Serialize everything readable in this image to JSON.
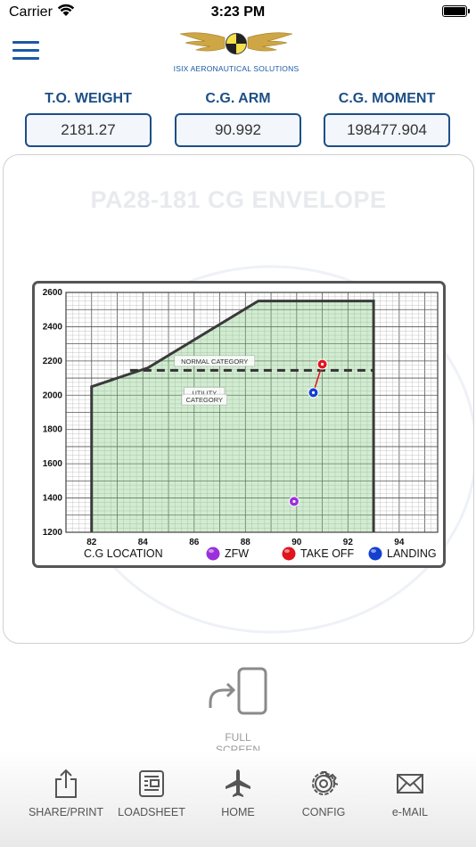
{
  "status_bar": {
    "carrier": "Carrier",
    "time": "3:23 PM"
  },
  "header": {
    "logo_text": "ISIX  AERONAUTICAL SOLUTIONS"
  },
  "metrics": [
    {
      "label": "T.O. WEIGHT",
      "value": "2181.27"
    },
    {
      "label": "C.G. ARM",
      "value": "90.992"
    },
    {
      "label": "C.G. MOMENT",
      "value": "198477.904"
    }
  ],
  "chart_data": {
    "type": "scatter",
    "title": "PA28-181 CG ENVELOPE",
    "xlabel": "C.G LOCATION",
    "ylabel": "",
    "xlim": [
      81,
      95.5
    ],
    "ylim": [
      1200,
      2600
    ],
    "x_ticks": [
      82,
      84,
      86,
      88,
      90,
      92,
      94
    ],
    "x_tick_labels": [
      "82",
      "84",
      "86",
      "88",
      "90",
      "92",
      "94"
    ],
    "y_ticks": [
      1200,
      1400,
      1600,
      1800,
      2000,
      2200,
      2400,
      2600
    ],
    "y_tick_labels": [
      "1200",
      "1400",
      "1600",
      "1800",
      "2000",
      "2200",
      "2400",
      "2600"
    ],
    "envelope": [
      [
        82,
        1200
      ],
      [
        82,
        2050
      ],
      [
        84.2,
        2160
      ],
      [
        88.5,
        2550
      ],
      [
        93,
        2550
      ],
      [
        93,
        1200
      ]
    ],
    "utility_line_y": 2145,
    "utility_line_x": [
      83.5,
      93
    ],
    "region_labels": [
      {
        "text": "NORMAL CATEGORY",
        "x": 86.8,
        "y": 2200
      },
      {
        "text": "UTILITY",
        "x": 86.4,
        "y": 2015
      },
      {
        "text": "CATEGORY",
        "x": 86.4,
        "y": 1975
      }
    ],
    "series": [
      {
        "name": "ZFW",
        "x": [
          89.9
        ],
        "y": [
          1380
        ],
        "color": "#9b30d9"
      },
      {
        "name": "TAKE OFF",
        "x": [
          91.0
        ],
        "y": [
          2181
        ],
        "color": "#e0151b"
      },
      {
        "name": "LANDING",
        "x": [
          90.65
        ],
        "y": [
          2015
        ],
        "color": "#1440d0"
      }
    ],
    "grid": true,
    "legend_position": "bottom"
  },
  "full_screen": {
    "label": "FULL SCREEN"
  },
  "tabs": [
    {
      "label": "SHARE/PRINT",
      "icon": "share-icon"
    },
    {
      "label": "LOADSHEET",
      "icon": "document-icon"
    },
    {
      "label": "HOME",
      "icon": "airplane-icon"
    },
    {
      "label": "CONFIG",
      "icon": "gear-icon"
    },
    {
      "label": "e-MAIL",
      "icon": "envelope-icon"
    }
  ]
}
